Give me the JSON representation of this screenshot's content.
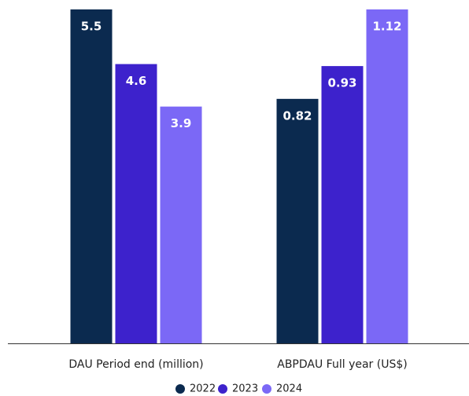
{
  "chart_data": [
    {
      "type": "bar",
      "categories": [
        "DAU Period end (million)"
      ],
      "ylim": [
        0,
        5.5
      ],
      "series": [
        {
          "name": "2022",
          "color": "#0b2a4f",
          "values": [
            5.5
          ]
        },
        {
          "name": "2023",
          "color": "#3d22cc",
          "values": [
            4.6
          ]
        },
        {
          "name": "2024",
          "color": "#7b68f6",
          "values": [
            3.9
          ]
        }
      ]
    },
    {
      "type": "bar",
      "categories": [
        "ABPDAU Full year (US$)"
      ],
      "ylim": [
        0,
        1.12
      ],
      "series": [
        {
          "color": "#0b2a4f",
          "values": [
            0.82
          ]
        },
        {
          "color": "#3d22cc",
          "values": [
            0.93
          ]
        },
        {
          "color": "#7b68f6",
          "values": [
            1.12
          ]
        }
      ]
    }
  ]
}
